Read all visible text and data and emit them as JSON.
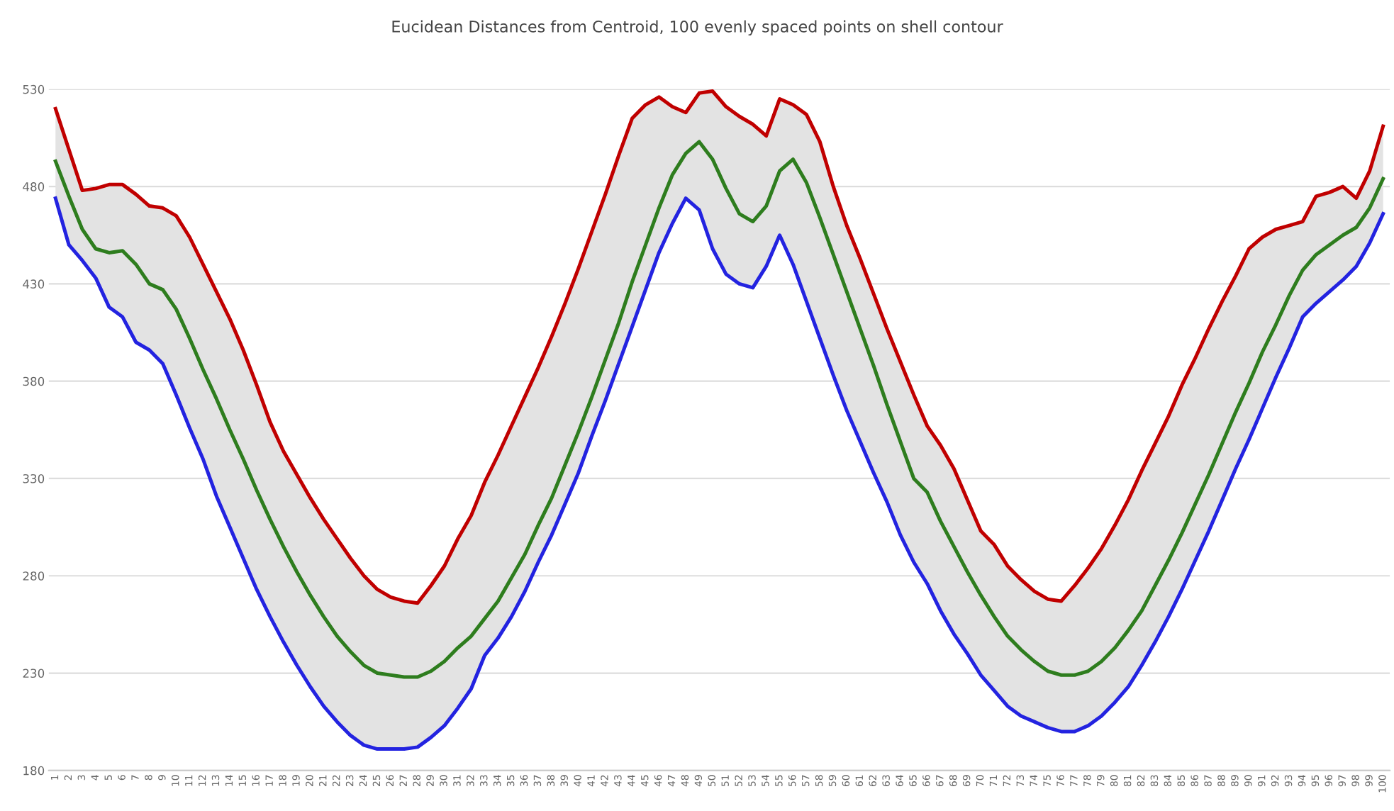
{
  "chart_data": {
    "type": "line",
    "title": "Eucidean Distances from Centroid, 100 evenly spaced points on shell contour",
    "categories": [
      "1",
      "2",
      "3",
      "4",
      "5",
      "6",
      "7",
      "8",
      "9",
      "10",
      "11",
      "12",
      "13",
      "14",
      "15",
      "16",
      "17",
      "18",
      "19",
      "20",
      "21",
      "22",
      "23",
      "24",
      "25",
      "26",
      "27",
      "28",
      "29",
      "30",
      "31",
      "32",
      "33",
      "34",
      "35",
      "36",
      "37",
      "38",
      "39",
      "40",
      "41",
      "42",
      "43",
      "44",
      "45",
      "46",
      "47",
      "48",
      "49",
      "50",
      "51",
      "52",
      "53",
      "54",
      "55",
      "56",
      "57",
      "58",
      "59",
      "60",
      "61",
      "62",
      "63",
      "64",
      "65",
      "66",
      "67",
      "68",
      "69",
      "70",
      "71",
      "72",
      "73",
      "74",
      "75",
      "76",
      "77",
      "78",
      "79",
      "80",
      "81",
      "82",
      "83",
      "84",
      "85",
      "86",
      "87",
      "88",
      "89",
      "90",
      "91",
      "92",
      "93",
      "94",
      "95",
      "96",
      "97",
      "98",
      "99",
      "100"
    ],
    "series": [
      {
        "color": "#c00000",
        "values": [
          520,
          499,
          478,
          479,
          481,
          481,
          476,
          470,
          469,
          465,
          454,
          440,
          426,
          412,
          396,
          378,
          359,
          344,
          332,
          320,
          309,
          299,
          289,
          280,
          273,
          269,
          267,
          266,
          275,
          285,
          299,
          311,
          328,
          342,
          357,
          372,
          387,
          403,
          420,
          438,
          457,
          476,
          496,
          515,
          522,
          526,
          521,
          518,
          528,
          529,
          521,
          516,
          512,
          506,
          525,
          522,
          517,
          503,
          480,
          460,
          443,
          425,
          407,
          390,
          373,
          357,
          347,
          335,
          319,
          303,
          296,
          285,
          278,
          272,
          268,
          267,
          275,
          284,
          294,
          306,
          319,
          334,
          348,
          362,
          378,
          392,
          407,
          421,
          434,
          448,
          454,
          458,
          460,
          462,
          475,
          477,
          480,
          474,
          488,
          511
        ]
      },
      {
        "color": "#2e7d1e",
        "values": [
          493,
          475,
          458,
          448,
          446,
          447,
          440,
          430,
          427,
          417,
          402,
          386,
          371,
          355,
          340,
          324,
          309,
          295,
          282,
          270,
          259,
          249,
          241,
          234,
          230,
          229,
          228,
          228,
          231,
          236,
          243,
          249,
          258,
          267,
          279,
          291,
          306,
          320,
          337,
          354,
          372,
          391,
          410,
          431,
          450,
          469,
          486,
          497,
          503,
          494,
          479,
          466,
          462,
          470,
          488,
          494,
          482,
          464,
          445,
          426,
          407,
          388,
          368,
          349,
          330,
          323,
          308,
          295,
          282,
          270,
          259,
          249,
          242,
          236,
          231,
          229,
          229,
          231,
          236,
          243,
          252,
          262,
          275,
          288,
          302,
          317,
          332,
          348,
          364,
          379,
          395,
          409,
          424,
          437,
          445,
          450,
          455,
          459,
          469,
          484
        ],
        "lower": [
          474,
          450,
          442,
          433,
          418,
          413,
          400,
          396,
          389,
          373,
          356,
          340,
          321,
          305,
          289,
          273,
          259,
          246,
          234,
          223,
          213,
          205,
          198,
          193,
          191,
          191,
          191,
          192,
          197,
          203,
          212,
          222,
          239,
          248,
          259,
          272,
          287,
          301,
          317,
          333,
          352,
          370,
          389,
          408,
          427,
          446,
          461,
          474,
          468,
          448,
          435,
          430,
          428,
          439,
          455,
          440,
          421,
          402,
          383,
          365,
          349,
          333,
          318,
          301,
          287,
          276,
          262,
          250,
          240,
          229,
          221,
          213,
          208,
          205,
          202,
          200,
          200,
          203,
          208,
          215,
          223,
          234,
          246,
          259,
          273,
          288,
          303,
          319,
          335,
          350,
          366,
          382,
          397,
          413,
          420,
          426,
          432,
          439,
          451,
          466
        ],
        "upper": [
          520,
          499,
          478,
          479,
          481,
          481,
          476,
          470,
          469,
          465,
          454,
          440,
          426,
          412,
          396,
          378,
          359,
          344,
          332,
          320,
          309,
          299,
          289,
          280,
          273,
          269,
          267,
          266,
          275,
          285,
          299,
          311,
          328,
          342,
          357,
          372,
          387,
          403,
          420,
          438,
          457,
          476,
          496,
          515,
          522,
          526,
          521,
          518,
          528,
          529,
          521,
          516,
          512,
          506,
          525,
          522,
          517,
          503,
          480,
          460,
          443,
          425,
          407,
          390,
          373,
          357,
          347,
          335,
          319,
          303,
          296,
          285,
          278,
          272,
          268,
          267,
          275,
          284,
          294,
          306,
          319,
          334,
          348,
          362,
          378,
          392,
          407,
          421,
          434,
          448,
          454,
          458,
          460,
          462,
          475,
          477,
          480,
          474,
          488,
          511
        ]
      },
      {
        "color": "#2323e0",
        "values": [
          474,
          450,
          442,
          433,
          418,
          413,
          400,
          396,
          389,
          373,
          356,
          340,
          321,
          305,
          289,
          273,
          259,
          246,
          234,
          223,
          213,
          205,
          198,
          193,
          191,
          191,
          191,
          192,
          197,
          203,
          212,
          222,
          239,
          248,
          259,
          272,
          287,
          301,
          317,
          333,
          352,
          370,
          389,
          408,
          427,
          446,
          461,
          474,
          468,
          448,
          435,
          430,
          428,
          439,
          455,
          440,
          421,
          402,
          383,
          365,
          349,
          333,
          318,
          301,
          287,
          276,
          262,
          250,
          240,
          229,
          221,
          213,
          208,
          205,
          202,
          200,
          200,
          203,
          208,
          215,
          223,
          234,
          246,
          259,
          273,
          288,
          303,
          319,
          335,
          350,
          366,
          382,
          397,
          413,
          420,
          426,
          432,
          439,
          451,
          466
        ]
      }
    ],
    "ylim": [
      180,
      530
    ],
    "yticks": [
      180,
      230,
      280,
      330,
      380,
      430,
      480,
      530
    ],
    "grid": "y",
    "marker": "none",
    "line_style": "solid"
  }
}
